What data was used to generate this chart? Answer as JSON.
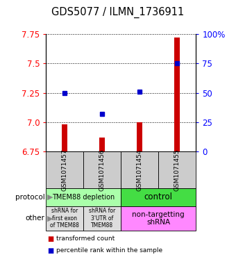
{
  "title": "GDS5077 / ILMN_1736911",
  "samples": [
    "GSM1071457",
    "GSM1071456",
    "GSM1071454",
    "GSM1071455"
  ],
  "bar_values": [
    6.98,
    6.87,
    7.0,
    7.72
  ],
  "bar_base": 6.75,
  "dot_values": [
    7.25,
    7.07,
    7.26,
    7.5
  ],
  "ylim": [
    6.75,
    7.75
  ],
  "yticks_left": [
    6.75,
    7.0,
    7.25,
    7.5,
    7.75
  ],
  "yticks_right_vals": [
    0,
    25,
    50,
    75,
    100
  ],
  "bar_color": "#cc0000",
  "dot_color": "#0000cc",
  "protocol_left_label": "TMEM88 depletion",
  "protocol_left_color": "#aaffaa",
  "protocol_right_label": "control",
  "protocol_right_color": "#44dd44",
  "other_label_0": "shRNA for\nfirst exon\nof TMEM88",
  "other_label_1": "shRNA for\n3'UTR of\nTMEM88",
  "other_label_2": "non-targetting\nshRNA",
  "other_color_01": "#dddddd",
  "other_color_2": "#ff88ff",
  "sample_bg": "#cccccc",
  "legend_red": "transformed count",
  "legend_blue": "percentile rank within the sample",
  "bar_width": 0.15
}
